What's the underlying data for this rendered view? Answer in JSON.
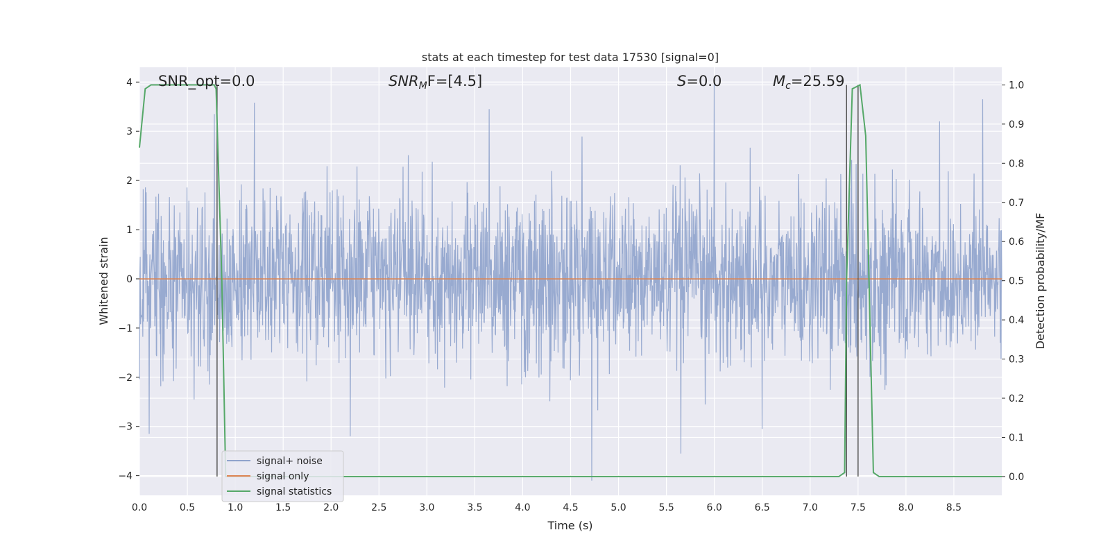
{
  "chart_data": {
    "type": "line",
    "title": "stats at each timestep for test data 17530 [signal=0]",
    "xlabel": "Time (s)",
    "ylabel": "Whitened strain",
    "y2label": "Detection probability/MF",
    "xlim": [
      0.0,
      9.0
    ],
    "ylim": [
      -4.4,
      4.3
    ],
    "y2lim": [
      -0.048,
      1.045
    ],
    "xticks": [
      "0.0",
      "0.5",
      "1.0",
      "1.5",
      "2.0",
      "2.5",
      "3.0",
      "3.5",
      "4.0",
      "4.5",
      "5.0",
      "5.5",
      "6.0",
      "6.5",
      "7.0",
      "7.5",
      "8.0",
      "8.5"
    ],
    "yticks": [
      "−4",
      "−3",
      "−2",
      "−1",
      "0",
      "1",
      "2",
      "3",
      "4"
    ],
    "y2ticks": [
      "0.0",
      "0.1",
      "0.2",
      "0.3",
      "0.4",
      "0.5",
      "0.6",
      "0.7",
      "0.8",
      "0.9",
      "1.0"
    ],
    "grid": true,
    "legend_position": "lower-left",
    "annotations": {
      "snr_opt": "SNR_opt=0.0",
      "snr_mf_sym": "SNR",
      "snr_mf_sub": "M",
      "snr_mf_rest": "F=[4.5]",
      "s_sym": "S",
      "s_rest": "=0.0",
      "mc_sym": "M",
      "mc_sub": "c",
      "mc_rest": "=25.59"
    },
    "series": [
      {
        "name": "signal+ noise",
        "color": "#8fa3cc",
        "kind": "noise",
        "noise_sigma": 0.85,
        "n_samples": 2304,
        "visible_extremes": [
          [
            0.1,
            -3.15
          ],
          [
            0.78,
            3.35
          ],
          [
            1.2,
            3.58
          ],
          [
            2.2,
            -3.2
          ],
          [
            3.65,
            3.45
          ],
          [
            4.72,
            -4.1
          ],
          [
            5.65,
            -3.55
          ],
          [
            6.0,
            3.95
          ],
          [
            6.5,
            -3.05
          ],
          [
            8.35,
            3.2
          ],
          [
            8.8,
            3.65
          ],
          [
            7.5,
            3.25
          ]
        ]
      },
      {
        "name": "signal only",
        "color": "#dd8452",
        "x": [
          0.0,
          9.0
        ],
        "y": [
          0.0,
          0.0
        ]
      },
      {
        "name": "signal statistics",
        "color": "#55a868",
        "x": [
          0.0,
          0.06,
          0.12,
          0.2,
          0.4,
          0.6,
          0.78,
          0.8,
          0.86,
          0.9,
          1.2,
          2.0,
          3.0,
          4.0,
          5.0,
          6.0,
          7.0,
          7.3,
          7.36,
          7.38,
          7.44,
          7.52,
          7.58,
          7.66,
          7.72,
          8.0,
          8.5,
          9.0
        ],
        "y": [
          0.84,
          0.99,
          1.0,
          1.0,
          1.0,
          1.0,
          1.0,
          0.99,
          0.5,
          0.0,
          0.0,
          0.0,
          0.0,
          0.0,
          0.0,
          0.0,
          0.0,
          0.0,
          0.01,
          0.5,
          0.99,
          1.0,
          0.87,
          0.01,
          0.0,
          0.0,
          0.0,
          0.0
        ]
      }
    ],
    "vertical_markers": [
      0.81,
      7.38,
      7.5
    ]
  }
}
